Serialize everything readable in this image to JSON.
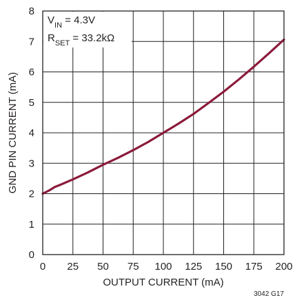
{
  "chart_data": {
    "type": "line",
    "title": "",
    "xlabel": "OUTPUT CURRENT (mA)",
    "ylabel": "GND PIN CURRENT (mA)",
    "xlim": [
      0,
      200
    ],
    "ylim": [
      0,
      8
    ],
    "x_ticks": [
      "0",
      "25",
      "50",
      "75",
      "100",
      "125",
      "150",
      "175",
      "200"
    ],
    "y_ticks": [
      "0",
      "1",
      "2",
      "3",
      "4",
      "5",
      "6",
      "7",
      "8"
    ],
    "grid": true,
    "legend": {
      "position": "top-left",
      "vin": {
        "main": "V",
        "sub": "IN",
        "rest": " = 4.3V"
      },
      "rset": {
        "main": "R",
        "sub": "SET",
        "rest": " = 33.2kΩ"
      }
    },
    "series": [
      {
        "color": "#8b1a3a",
        "x": [
          0,
          5,
          10,
          15,
          25,
          37.5,
          50,
          62.5,
          75,
          87.5,
          100,
          112.5,
          125,
          137.5,
          150,
          162.5,
          175,
          187.5,
          200
        ],
        "y": [
          2.0,
          2.1,
          2.22,
          2.3,
          2.47,
          2.7,
          2.95,
          3.18,
          3.43,
          3.7,
          4.0,
          4.3,
          4.62,
          4.98,
          5.35,
          5.75,
          6.17,
          6.61,
          7.06
        ]
      }
    ],
    "footnote": "3042 G17"
  }
}
